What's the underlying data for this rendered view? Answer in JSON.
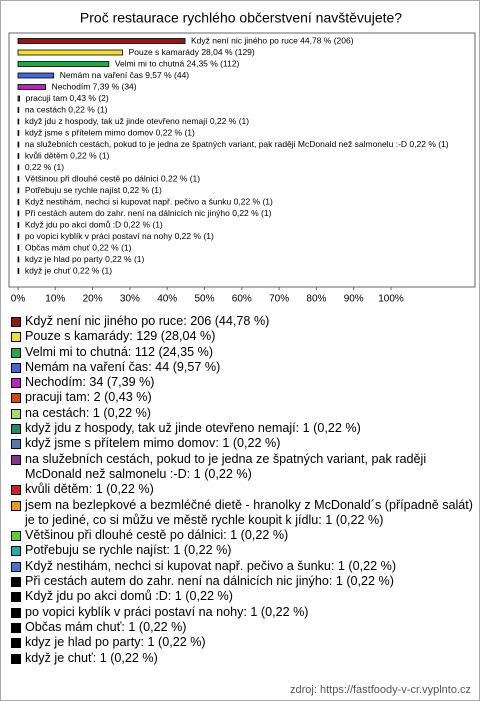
{
  "chart_data": {
    "type": "bar",
    "orientation": "horizontal",
    "title": "Proč restaurace rychlého občerstvení navštěvujete?",
    "values": [
      44.78,
      28.04,
      24.35,
      9.57,
      7.39,
      0.43,
      0.22,
      0.22,
      0.22,
      0.22,
      0.22,
      0.22,
      0.22,
      0.22,
      0.22,
      0.22,
      0.22,
      0.22,
      0.22,
      0.22,
      0.22
    ],
    "value_labels": [
      "Když není nic jiného po ruce 44,78 % (206)",
      "Pouze s kamarády 28,04 % (129)",
      "Velmi mi to chutná 24,35 % (112)",
      "Nemám na vaření čas 9,57 % (44)",
      "Nechodím 7,39 % (34)",
      "pracuji tam 0,43 % (2)",
      "na cestách 0,22 % (1)",
      "když jdu z hospody, tak už jinde otevřeno nemají 0,22 % (1)",
      "když jsme s přítelem mimo domov 0,22 % (1)",
      "na služebních cestách, pokud to je jedna ze špatných variant, pak raději McDonald než salmonelu :-D 0,22 % (1)",
      "kvůli dětěm 0,22 % (1)",
      "0,22 % (1)",
      "Většinou při dlouhé cestě po dálnici 0,22 % (1)",
      "Potřebuju se rychle najíst 0,22 % (1)",
      "Když nestihám, nechci si kupovat např. pečivo a šunku 0,22 % (1)",
      "Při cestách autem do zahr. není na dálnicích nic jinýho 0,22 % (1)",
      "Když jdu po akci domů :D 0,22 % (1)",
      "po vopici kyblík v práci postaví na nohy 0,22 % (1)",
      "Občas mám chuť 0,22 % (1)",
      "kdyz je hlad po party 0,22 % (1)",
      "když je chuť 0,22 % (1)"
    ],
    "colors": [
      "#8b1a1a",
      "#f2de3a",
      "#22a844",
      "#4466dd",
      "#bb22bb",
      "#dd4411",
      "#a8dd66",
      "#228866",
      "#5577aa",
      "#883388",
      "#cc2222",
      "#ee9922",
      "#66cc33",
      "#22aaaa",
      "#4477cc",
      "#000000",
      "#000000",
      "#000000",
      "#000000",
      "#000000",
      "#000000"
    ],
    "legend": [
      "Když není nic jiného po ruce: 206 (44,78 %)",
      "Pouze s kamarády: 129 (28,04 %)",
      "Velmi mi to chutná: 112 (24,35 %)",
      "Nemám na vaření čas: 44 (9,57 %)",
      "Nechodím: 34 (7,39 %)",
      "pracuji tam: 2 (0,43 %)",
      "na cestách: 1 (0,22 %)",
      "když jdu z hospody, tak už jinde otevřeno nemají: 1 (0,22 %)",
      "když jsme s přítelem mimo domov: 1 (0,22 %)",
      "na služebních cestách, pokud to je jedna ze špatných variant, pak raději McDonald než salmonelu :-D: 1 (0,22 %)",
      "kvůli dětěm: 1 (0,22 %)",
      "jsem na bezlepkové a bezmléčné dietě - hranolky z McDonald´s (případně salát) je to jediné, co si můžu ve městě rychle koupit k jídlu: 1 (0,22 %)",
      "Většinou při dlouhé cestě po dálnici: 1 (0,22 %)",
      "Potřebuju se rychle najíst: 1 (0,22 %)",
      "Když nestihám, nechci si kupovat např. pečivo a šunku: 1 (0,22 %)",
      "Při cestách autem do zahr. není na dálnicích nic jinýho: 1 (0,22 %)",
      "Když jdu po akci domů :D: 1 (0,22 %)",
      "po vopici kyblík v práci postaví na nohy: 1 (0,22 %)",
      "Občas mám chuť: 1 (0,22 %)",
      "kdyz je hlad po party: 1 (0,22 %)",
      "když je chuť: 1 (0,22 %)"
    ],
    "xlim": [
      0,
      100
    ],
    "xticks": [
      {
        "value": 0,
        "label": "0%"
      },
      {
        "value": 10,
        "label": "10%"
      },
      {
        "value": 20,
        "label": "20%"
      },
      {
        "value": 30,
        "label": "30%"
      },
      {
        "value": 40,
        "label": "40%"
      },
      {
        "value": 50,
        "label": "50%"
      },
      {
        "value": 60,
        "label": "60%"
      },
      {
        "value": 70,
        "label": "70%"
      },
      {
        "value": 80,
        "label": "80%"
      },
      {
        "value": 90,
        "label": "90%"
      },
      {
        "value": 100,
        "label": "100%"
      }
    ],
    "source": "zdroj: https://fastfoody-v-cr.vyplnto.cz"
  }
}
